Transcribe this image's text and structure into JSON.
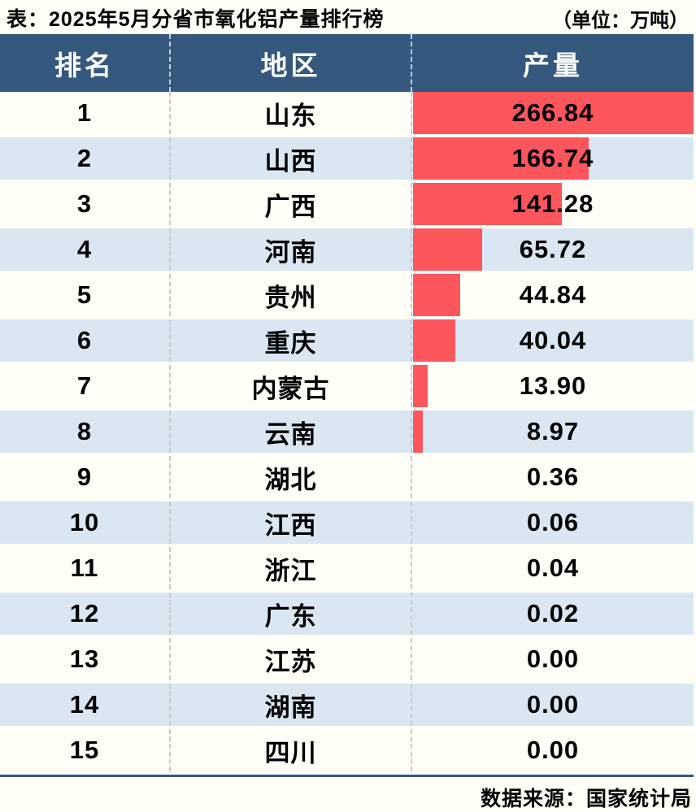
{
  "title": "表：2025年5月分省市氧化铝产量排行榜",
  "unit_label": "（单位：万吨）",
  "footer": {
    "source": "数据来源：国家统计局"
  },
  "table": {
    "columns": [
      "排名",
      "地区",
      "产量"
    ],
    "rows": [
      {
        "rank": "1",
        "region": "山东",
        "value": "266.84"
      },
      {
        "rank": "2",
        "region": "山西",
        "value": "166.74"
      },
      {
        "rank": "3",
        "region": "广西",
        "value": "141.28"
      },
      {
        "rank": "4",
        "region": "河南",
        "value": "65.72"
      },
      {
        "rank": "5",
        "region": "贵州",
        "value": "44.84"
      },
      {
        "rank": "6",
        "region": "重庆",
        "value": "40.04"
      },
      {
        "rank": "7",
        "region": "内蒙古",
        "value": "13.90"
      },
      {
        "rank": "8",
        "region": "云南",
        "value": "8.97"
      },
      {
        "rank": "9",
        "region": "湖北",
        "value": "0.36"
      },
      {
        "rank": "10",
        "region": "江西",
        "value": "0.06"
      },
      {
        "rank": "11",
        "region": "浙江",
        "value": "0.04"
      },
      {
        "rank": "12",
        "region": "广东",
        "value": "0.02"
      },
      {
        "rank": "13",
        "region": "江苏",
        "value": "0.00"
      },
      {
        "rank": "14",
        "region": "湖南",
        "value": "0.00"
      },
      {
        "rank": "15",
        "region": "四川",
        "value": "0.00"
      }
    ]
  },
  "chart_data": {
    "type": "bar",
    "orientation": "horizontal",
    "title": "2025年5月分省市氧化铝产量排行榜",
    "unit": "万吨",
    "categories": [
      "山东",
      "山西",
      "广西",
      "河南",
      "贵州",
      "重庆",
      "内蒙古",
      "云南",
      "湖北",
      "江西",
      "浙江",
      "广东",
      "江苏",
      "湖南",
      "四川"
    ],
    "values": [
      266.84,
      166.74,
      141.28,
      65.72,
      44.84,
      40.04,
      13.9,
      8.97,
      0.36,
      0.06,
      0.04,
      0.02,
      0.0,
      0.0,
      0.0
    ],
    "xlabel": "产量",
    "ylabel": "地区",
    "xlim": [
      0,
      266.84
    ],
    "legend": false,
    "grid": false,
    "source": "国家统计局"
  },
  "colors": {
    "header_bg": "#35587e",
    "alt_row_bg": "#dae7f3",
    "bar": "#fb565c",
    "page_bg": "#fffef7",
    "rule": "#35587e",
    "header_text": "#ffffff",
    "body_text": "#000000"
  }
}
